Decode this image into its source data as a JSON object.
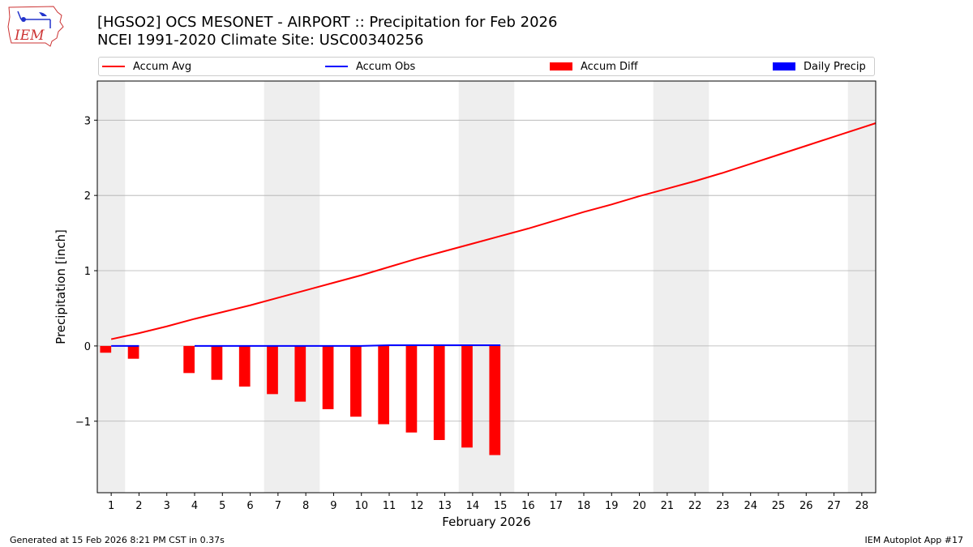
{
  "header": {
    "title_line1": "[HGSO2] OCS MESONET - AIRPORT :: Precipitation for Feb 2026",
    "title_line2": "NCEI 1991-2020 Climate Site: USC00340256",
    "logo_text": "IEM"
  },
  "footer": {
    "left": "Generated at 15 Feb 2026 8:21 PM CST in 0.37s",
    "right": "IEM Autoplot App #17"
  },
  "colors": {
    "accum_avg": "#ff0000",
    "accum_obs": "#0000ff",
    "accum_diff": "#ff0000",
    "daily_precip": "#0000ff",
    "weekend_shade": "#eeeeee",
    "grid": "#b0b0b0"
  },
  "chart_data": {
    "type": "bar",
    "xlabel": "February 2026",
    "ylabel": "Precipitation [inch]",
    "xlim": [
      0.5,
      28.5
    ],
    "ylim": [
      -1.95,
      3.52
    ],
    "yticks": [
      -1,
      0,
      1,
      2,
      3
    ],
    "ytick_labels": [
      "−1",
      "0",
      "1",
      "2",
      "3"
    ],
    "xticks": [
      1,
      2,
      3,
      4,
      5,
      6,
      7,
      8,
      9,
      10,
      11,
      12,
      13,
      14,
      15,
      16,
      17,
      18,
      19,
      20,
      21,
      22,
      23,
      24,
      25,
      26,
      27,
      28
    ],
    "grid": "horizontal",
    "legend_position": "top",
    "shaded_days": [
      [
        0.5,
        1.5
      ],
      [
        6.5,
        8.5
      ],
      [
        13.5,
        15.5
      ],
      [
        20.5,
        22.5
      ],
      [
        27.5,
        28.5
      ]
    ],
    "series": [
      {
        "name": "Accum Avg",
        "kind": "line",
        "x": [
          1,
          2,
          3,
          4,
          5,
          6,
          7,
          8,
          9,
          10,
          11,
          12,
          13,
          14,
          15,
          16,
          17,
          18,
          19,
          20,
          21,
          22,
          23,
          24,
          25,
          26,
          27,
          28,
          28.5
        ],
        "values": [
          0.09,
          0.17,
          0.26,
          0.36,
          0.45,
          0.54,
          0.64,
          0.74,
          0.84,
          0.94,
          1.05,
          1.16,
          1.26,
          1.36,
          1.46,
          1.56,
          1.67,
          1.78,
          1.88,
          1.99,
          2.09,
          2.19,
          2.3,
          2.42,
          2.54,
          2.66,
          2.78,
          2.9,
          2.96
        ]
      },
      {
        "name": "Accum Obs",
        "kind": "line",
        "segments": [
          {
            "x": [
              1,
              2
            ],
            "values": [
              0.0,
              0.0
            ]
          },
          {
            "x": [
              4,
              5,
              6,
              7,
              8,
              9,
              10,
              11,
              12,
              13,
              14,
              15
            ],
            "values": [
              0.0,
              0.0,
              0.0,
              0.0,
              0.0,
              0.0,
              0.0,
              0.01,
              0.01,
              0.01,
              0.01,
              0.01
            ]
          }
        ]
      },
      {
        "name": "Accum Diff",
        "kind": "bar",
        "x": [
          1,
          2,
          4,
          5,
          6,
          7,
          8,
          9,
          10,
          11,
          12,
          13,
          14,
          15
        ],
        "values": [
          -0.09,
          -0.17,
          -0.36,
          -0.45,
          -0.54,
          -0.64,
          -0.74,
          -0.84,
          -0.94,
          -1.04,
          -1.15,
          -1.25,
          -1.35,
          -1.45
        ]
      },
      {
        "name": "Daily Precip",
        "kind": "bar",
        "x": [],
        "values": []
      }
    ]
  }
}
